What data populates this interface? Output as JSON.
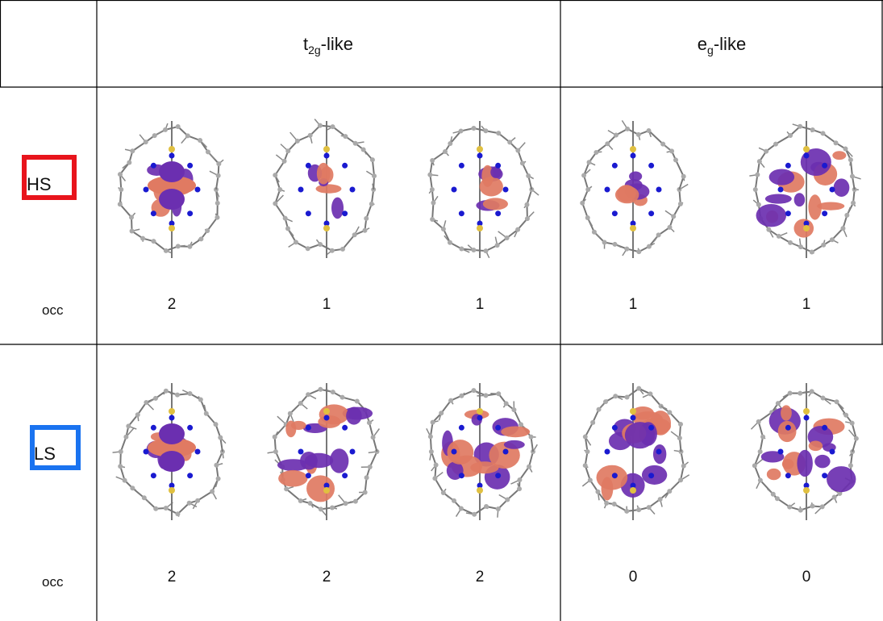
{
  "header": {
    "columns": [
      {
        "base": "t",
        "sub": "2g",
        "suffix": "-like"
      },
      {
        "base": "e",
        "sub": "g",
        "suffix": "-like"
      }
    ]
  },
  "table": {
    "rows": [
      {
        "label": "HS",
        "occ_label": "occ",
        "occ": [
          2,
          1,
          1,
          1,
          1
        ]
      },
      {
        "label": "LS",
        "occ_label": "occ",
        "occ": [
          2,
          2,
          2,
          0,
          0
        ]
      }
    ]
  }
}
